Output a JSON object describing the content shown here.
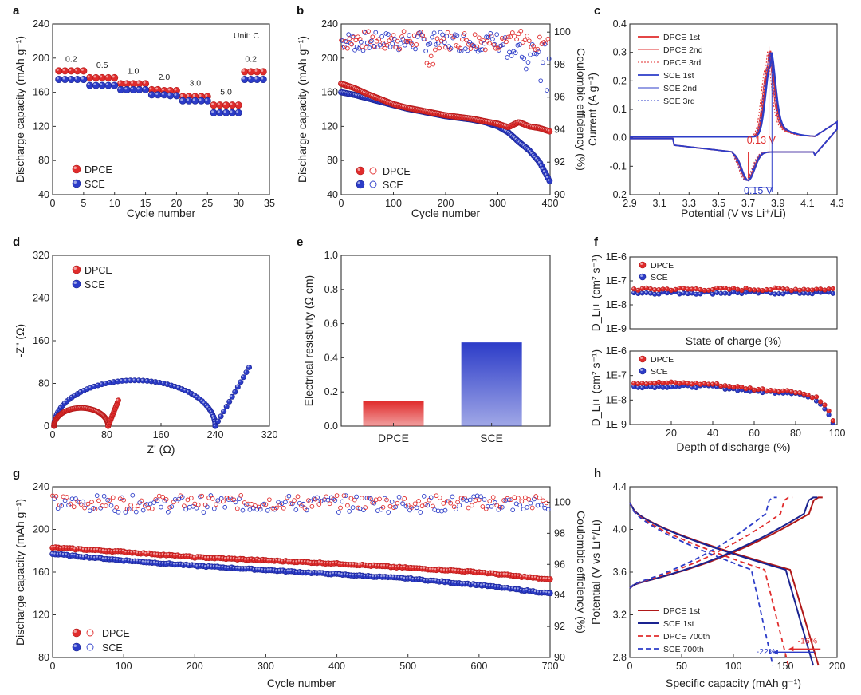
{
  "colors": {
    "dpce": "#e02c2c",
    "sce": "#2c3cc8",
    "dpce_dark": "#b01818",
    "sce_dark": "#1a2390"
  },
  "panels": {
    "a": {
      "letter": "a",
      "xlabel": "Cycle number",
      "ylabel": "Discharge capacity (mAh g⁻¹)",
      "unit_note": "Unit: C",
      "rate_labels": [
        "0.2",
        "0.5",
        "1.0",
        "2.0",
        "3.0",
        "5.0",
        "0.2"
      ],
      "legend": [
        "DPCE",
        "SCE"
      ]
    },
    "b": {
      "letter": "b",
      "xlabel": "Cycle number",
      "ylabel": "Discharge capacity (mAh g⁻¹)",
      "ylabel2": "Coulombic efficiency (%)",
      "legend": [
        "DPCE",
        "SCE"
      ]
    },
    "c": {
      "letter": "c",
      "xlabel": "Potential (V vs Li⁺/Li)",
      "ylabel": "Current (A g⁻¹)",
      "legend": [
        "DPCE 1st",
        "DPCE 2nd",
        "DPCE 3rd",
        "SCE 1st",
        "SCE 2nd",
        "SCE 3rd"
      ],
      "ann_dpce": "0.13 V",
      "ann_sce": "0.15 V"
    },
    "d": {
      "letter": "d",
      "xlabel": "Z' (Ω)",
      "ylabel": "-Z'' (Ω)",
      "legend": [
        "DPCE",
        "SCE"
      ]
    },
    "e": {
      "letter": "e",
      "ylabel": "Electrical resistivity (Ω cm)"
    },
    "f": {
      "letter": "f",
      "ylabel": "D_Li+ (cm² s⁻¹)",
      "xlabel_top": "State of charge (%)",
      "xlabel_bottom": "Depth of discharge (%)",
      "legend": [
        "DPCE",
        "SCE"
      ]
    },
    "g": {
      "letter": "g",
      "xlabel": "Cycle number",
      "ylabel": "Discharge capacity (mAh g⁻¹)",
      "ylabel2": "Coulombic efficiency (%)",
      "legend": [
        "DPCE",
        "SCE"
      ]
    },
    "h": {
      "letter": "h",
      "xlabel": "Specific capacity (mAh g⁻¹)",
      "ylabel": "Potential (V vs Li⁺/Li)",
      "legend": [
        "DPCE 1st",
        "SCE 1st",
        "DPCE 700th",
        "SCE 700th"
      ],
      "ann_dpce": "-16%",
      "ann_sce": "-22%"
    }
  },
  "chart_data": [
    {
      "id": "a",
      "type": "scatter",
      "title": "",
      "xlabel": "Cycle number",
      "ylabel": "Discharge capacity (mAh g-1)",
      "xlim": [
        0,
        35
      ],
      "ylim": [
        40,
        240
      ],
      "xticks": [
        0,
        5,
        10,
        15,
        20,
        25,
        30,
        35
      ],
      "yticks": [
        40,
        80,
        120,
        160,
        200,
        240
      ],
      "rates": [
        "0.2",
        "0.5",
        "1.0",
        "2.0",
        "3.0",
        "5.0",
        "0.2"
      ],
      "series": [
        {
          "name": "DPCE",
          "x": [
            1,
            2,
            3,
            4,
            5,
            6,
            7,
            8,
            9,
            10,
            11,
            12,
            13,
            14,
            15,
            16,
            17,
            18,
            19,
            20,
            21,
            22,
            23,
            24,
            25,
            26,
            27,
            28,
            29,
            30,
            31,
            32,
            33,
            34
          ],
          "values": [
            185,
            185,
            185,
            185,
            185,
            177,
            177,
            177,
            177,
            177,
            170,
            170,
            170,
            170,
            170,
            163,
            163,
            162,
            162,
            162,
            155,
            155,
            155,
            155,
            155,
            145,
            145,
            145,
            145,
            145,
            184,
            184,
            184,
            184
          ]
        },
        {
          "name": "SCE",
          "x": [
            1,
            2,
            3,
            4,
            5,
            6,
            7,
            8,
            9,
            10,
            11,
            12,
            13,
            14,
            15,
            16,
            17,
            18,
            19,
            20,
            21,
            22,
            23,
            24,
            25,
            26,
            27,
            28,
            29,
            30,
            31,
            32,
            33,
            34
          ],
          "values": [
            175,
            175,
            175,
            175,
            175,
            168,
            168,
            168,
            168,
            168,
            163,
            163,
            163,
            163,
            163,
            157,
            157,
            157,
            156,
            156,
            150,
            150,
            150,
            150,
            150,
            136,
            136,
            136,
            136,
            136,
            175,
            175,
            175,
            175
          ]
        }
      ]
    },
    {
      "id": "b",
      "type": "scatter",
      "xlabel": "Cycle number",
      "ylabel": "Discharge capacity (mAh g-1)",
      "ylabel2": "Coulombic efficiency (%)",
      "xlim": [
        0,
        400
      ],
      "ylim": [
        40,
        240
      ],
      "y2lim": [
        90,
        100.5
      ],
      "xticks": [
        0,
        100,
        200,
        300,
        400
      ],
      "yticks": [
        40,
        80,
        120,
        160,
        200,
        240
      ],
      "y2ticks": [
        90,
        92,
        94,
        96,
        98,
        100
      ],
      "series": [
        {
          "name": "DPCE capacity",
          "x": [
            0,
            25,
            50,
            75,
            100,
            125,
            150,
            175,
            200,
            225,
            250,
            275,
            300,
            320,
            340,
            360,
            380,
            400
          ],
          "values": [
            170,
            165,
            158,
            152,
            146,
            142,
            139,
            136,
            133,
            131,
            129,
            126,
            123,
            119,
            125,
            120,
            118,
            114
          ]
        },
        {
          "name": "SCE capacity",
          "x": [
            0,
            25,
            50,
            75,
            100,
            125,
            150,
            175,
            200,
            225,
            250,
            275,
            300,
            320,
            340,
            360,
            380,
            400
          ],
          "values": [
            160,
            157,
            153,
            149,
            145,
            141,
            138,
            135,
            132,
            130,
            128,
            125,
            120,
            113,
            102,
            92,
            78,
            55
          ]
        },
        {
          "name": "DPCE CE",
          "x": [
            0,
            400
          ],
          "values": [
            99.8,
            99.8
          ]
        },
        {
          "name": "SCE CE",
          "x": [
            0,
            400
          ],
          "values": [
            99.6,
            97.0
          ]
        }
      ]
    },
    {
      "id": "c",
      "type": "line",
      "xlabel": "Potential (V vs Li+/Li)",
      "ylabel": "Current (A g-1)",
      "xlim": [
        2.9,
        4.3
      ],
      "ylim": [
        -0.2,
        0.4
      ],
      "xticks": [
        2.9,
        3.1,
        3.3,
        3.5,
        3.7,
        3.9,
        4.1,
        4.3
      ],
      "yticks": [
        -0.2,
        -0.1,
        0.0,
        0.1,
        0.2,
        0.3,
        0.4
      ],
      "series": [
        {
          "name": "DPCE",
          "anodic_peak": [
            3.84,
            0.32
          ],
          "cathodic_peak": [
            3.7,
            -0.14
          ]
        },
        {
          "name": "SCE",
          "anodic_peak": [
            3.85,
            0.3
          ],
          "cathodic_peak": [
            3.7,
            -0.145
          ]
        }
      ],
      "annotations": [
        "0.13 V",
        "0.15 V"
      ]
    },
    {
      "id": "d",
      "type": "scatter",
      "xlabel": "Z' (Ω)",
      "ylabel": "-Z'' (Ω)",
      "xlim": [
        0,
        320
      ],
      "ylim": [
        0,
        320
      ],
      "xticks": [
        0,
        80,
        160,
        240,
        320
      ],
      "yticks": [
        0,
        80,
        160,
        240,
        320
      ],
      "series": [
        {
          "name": "DPCE",
          "semicircle": [
            2,
            82
          ],
          "tail_end": [
            97,
            48
          ]
        },
        {
          "name": "SCE",
          "semicircle": [
            2,
            240
          ],
          "tail_end": [
            290,
            110
          ]
        }
      ]
    },
    {
      "id": "e",
      "type": "bar",
      "ylabel": "Electrical resistivity (Ω cm)",
      "categories": [
        "DPCE",
        "SCE"
      ],
      "values": [
        0.145,
        0.49
      ],
      "ylim": [
        0,
        1.0
      ],
      "yticks": [
        0.0,
        0.2,
        0.4,
        0.6,
        0.8,
        1.0
      ]
    },
    {
      "id": "f_top",
      "type": "scatter",
      "xlabel": "State of charge (%)",
      "ylabel": "D_Li+ (cm2 s-1)",
      "ylim_log": [
        -9,
        -6
      ],
      "yticks": [
        "1E-9",
        "1E-8",
        "1E-7",
        "1E-6"
      ],
      "series": [
        {
          "name": "DPCE",
          "value_log": -7.35
        },
        {
          "name": "SCE",
          "value_log": -7.5
        }
      ]
    },
    {
      "id": "f_bottom",
      "type": "scatter",
      "xlabel": "Depth of discharge (%)",
      "ylabel": "D_Li+ (cm2 s-1)",
      "xlim": [
        0,
        100
      ],
      "xticks": [
        20,
        40,
        60,
        80,
        100
      ],
      "ylim_log": [
        -9,
        -6
      ],
      "yticks": [
        "1E-9",
        "1E-8",
        "1E-7",
        "1E-6"
      ],
      "series": [
        {
          "name": "DPCE",
          "x": [
            2,
            20,
            40,
            60,
            80,
            90,
            95,
            98
          ],
          "values_log": [
            -7.3,
            -7.3,
            -7.35,
            -7.55,
            -7.65,
            -7.9,
            -8.3,
            -8.8
          ]
        },
        {
          "name": "SCE",
          "x": [
            2,
            20,
            40,
            60,
            80,
            90,
            95,
            98
          ],
          "values_log": [
            -7.45,
            -7.45,
            -7.45,
            -7.65,
            -7.7,
            -8.0,
            -8.4,
            -8.9
          ]
        }
      ]
    },
    {
      "id": "g",
      "type": "scatter",
      "xlabel": "Cycle number",
      "ylabel": "Discharge capacity (mAh g-1)",
      "ylabel2": "Coulombic efficiency (%)",
      "xlim": [
        0,
        700
      ],
      "ylim": [
        80,
        240
      ],
      "y2lim": [
        90,
        101
      ],
      "xticks": [
        0,
        100,
        200,
        300,
        400,
        500,
        600,
        700
      ],
      "yticks": [
        80,
        120,
        160,
        200,
        240
      ],
      "y2ticks": [
        90,
        92,
        94,
        96,
        98,
        100
      ],
      "series": [
        {
          "name": "DPCE capacity",
          "x": [
            0,
            100,
            200,
            300,
            400,
            500,
            600,
            700
          ],
          "values": [
            183,
            179,
            174,
            171,
            168,
            164,
            160,
            153
          ]
        },
        {
          "name": "SCE capacity",
          "x": [
            0,
            100,
            200,
            300,
            400,
            500,
            600,
            700
          ],
          "values": [
            177,
            171,
            166,
            162,
            158,
            154,
            148,
            140
          ]
        },
        {
          "name": "DPCE CE",
          "x": [
            0,
            700
          ],
          "values": [
            100,
            100
          ]
        },
        {
          "name": "SCE CE",
          "x": [
            0,
            700
          ],
          "values": [
            99.9,
            99.9
          ]
        }
      ]
    },
    {
      "id": "h",
      "type": "line",
      "xlabel": "Specific capacity (mAh g-1)",
      "ylabel": "Potential (V vs Li+/Li)",
      "xlim": [
        0,
        200
      ],
      "ylim": [
        2.8,
        4.4
      ],
      "xticks": [
        0,
        50,
        100,
        150,
        200
      ],
      "yticks": [
        2.8,
        3.2,
        3.6,
        4.0,
        4.4
      ],
      "series": [
        {
          "name": "DPCE 1st",
          "discharge_capacity": 182
        },
        {
          "name": "SCE 1st",
          "discharge_capacity": 177
        },
        {
          "name": "DPCE 700th",
          "discharge_capacity": 153
        },
        {
          "name": "SCE 700th",
          "discharge_capacity": 138
        }
      ],
      "annotations": [
        "-16%",
        "-22%"
      ]
    }
  ]
}
